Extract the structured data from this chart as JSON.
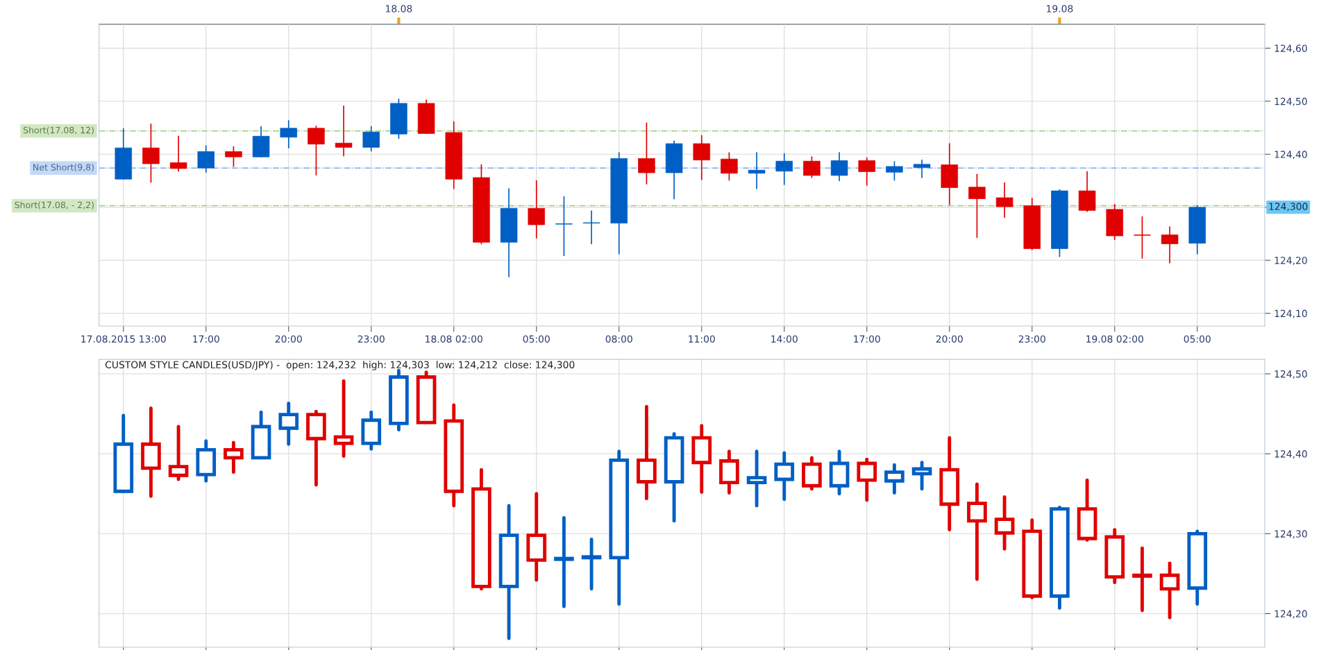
{
  "chart_data": [
    {
      "type": "candlestick",
      "x": [
        "2015-08-17T14:00",
        "2015-08-17T15:00",
        "2015-08-17T16:00",
        "2015-08-17T17:00",
        "2015-08-17T18:00",
        "2015-08-17T19:00",
        "2015-08-17T20:00",
        "2015-08-17T21:00",
        "2015-08-17T22:00",
        "2015-08-17T23:00",
        "2015-08-18T00:00",
        "2015-08-18T01:00",
        "2015-08-18T02:00",
        "2015-08-18T03:00",
        "2015-08-18T04:00",
        "2015-08-18T05:00",
        "2015-08-18T06:00",
        "2015-08-18T07:00",
        "2015-08-18T08:00",
        "2015-08-18T09:00",
        "2015-08-18T10:00",
        "2015-08-18T11:00",
        "2015-08-18T12:00",
        "2015-08-18T13:00",
        "2015-08-18T14:00",
        "2015-08-18T15:00",
        "2015-08-18T16:00",
        "2015-08-18T17:00",
        "2015-08-18T18:00",
        "2015-08-18T19:00",
        "2015-08-18T20:00",
        "2015-08-18T21:00",
        "2015-08-18T22:00",
        "2015-08-18T23:00",
        "2015-08-19T00:00",
        "2015-08-19T01:00",
        "2015-08-19T02:00",
        "2015-08-19T03:00",
        "2015-08-19T04:00",
        "2015-08-19T05:00"
      ],
      "ohlc": [
        [
          124.353,
          124.448,
          124.353,
          124.412
        ],
        [
          124.412,
          124.457,
          124.347,
          124.382
        ],
        [
          124.384,
          124.434,
          124.368,
          124.373
        ],
        [
          124.374,
          124.416,
          124.366,
          124.405
        ],
        [
          124.405,
          124.414,
          124.377,
          124.395
        ],
        [
          124.395,
          124.452,
          124.395,
          124.434
        ],
        [
          124.432,
          124.463,
          124.412,
          124.449
        ],
        [
          124.449,
          124.453,
          124.361,
          124.419
        ],
        [
          124.421,
          124.491,
          124.397,
          124.413
        ],
        [
          124.413,
          124.452,
          124.406,
          124.442
        ],
        [
          124.438,
          124.504,
          124.43,
          124.496
        ],
        [
          124.496,
          124.502,
          124.439,
          124.439
        ],
        [
          124.441,
          124.461,
          124.335,
          124.353
        ],
        [
          124.356,
          124.38,
          124.231,
          124.234
        ],
        [
          124.234,
          124.335,
          124.169,
          124.298
        ],
        [
          124.298,
          124.35,
          124.242,
          124.267
        ],
        [
          124.268,
          124.32,
          124.209,
          124.269
        ],
        [
          124.27,
          124.293,
          124.231,
          124.271
        ],
        [
          124.27,
          124.403,
          124.212,
          124.392
        ],
        [
          124.392,
          124.459,
          124.344,
          124.365
        ],
        [
          124.365,
          124.425,
          124.316,
          124.42
        ],
        [
          124.42,
          124.435,
          124.352,
          124.389
        ],
        [
          124.391,
          124.403,
          124.351,
          124.364
        ],
        [
          124.364,
          124.403,
          124.335,
          124.37
        ],
        [
          124.368,
          124.401,
          124.343,
          124.387
        ],
        [
          124.387,
          124.395,
          124.356,
          124.36
        ],
        [
          124.36,
          124.403,
          124.35,
          124.388
        ],
        [
          124.388,
          124.393,
          124.342,
          124.367
        ],
        [
          124.366,
          124.386,
          124.351,
          124.377
        ],
        [
          124.375,
          124.389,
          124.356,
          124.381
        ],
        [
          124.38,
          124.42,
          124.305,
          124.337
        ],
        [
          124.338,
          124.362,
          124.243,
          124.316
        ],
        [
          124.318,
          124.346,
          124.281,
          124.301
        ],
        [
          124.303,
          124.317,
          124.22,
          124.222
        ],
        [
          124.222,
          124.333,
          124.207,
          124.331
        ],
        [
          124.331,
          124.367,
          124.292,
          124.294
        ],
        [
          124.296,
          124.305,
          124.239,
          124.246
        ],
        [
          124.248,
          124.282,
          124.204,
          124.247
        ],
        [
          124.248,
          124.263,
          124.195,
          124.231
        ],
        [
          124.232,
          124.303,
          124.212,
          124.3
        ]
      ],
      "colors": [
        "#005fc4",
        "#e00000",
        "#e00000",
        "#005fc4",
        "#e00000",
        "#005fc4",
        "#005fc4",
        "#e00000",
        "#e00000",
        "#005fc4",
        "#005fc4",
        "#e00000",
        "#e00000",
        "#e00000",
        "#005fc4",
        "#e00000",
        "#005fc4",
        "#005fc4",
        "#005fc4",
        "#e00000",
        "#005fc4",
        "#e00000",
        "#e00000",
        "#005fc4",
        "#005fc4",
        "#e00000",
        "#005fc4",
        "#e00000",
        "#005fc4",
        "#005fc4",
        "#e00000",
        "#e00000",
        "#e00000",
        "#e00000",
        "#005fc4",
        "#e00000",
        "#e00000",
        "#e00000",
        "#e00000",
        "#005fc4"
      ],
      "xlim": [
        "2015-08-17T13:07",
        "2015-08-19T07:27"
      ],
      "x2lim": [
        "2015-08-17T13:07",
        "2015-08-19T07:27"
      ],
      "xticks": [
        {
          "value": "2015-08-17T14:00",
          "label": "17.08.2015 13:00"
        },
        {
          "value": "2015-08-17T17:00",
          "label": "17:00"
        },
        {
          "value": "2015-08-17T20:00",
          "label": "20:00"
        },
        {
          "value": "2015-08-17T23:00",
          "label": "23:00"
        },
        {
          "value": "2015-08-18T02:00",
          "label": "18.08 02:00"
        },
        {
          "value": "2015-08-18T05:00",
          "label": "05:00"
        },
        {
          "value": "2015-08-18T08:00",
          "label": "08:00"
        },
        {
          "value": "2015-08-18T11:00",
          "label": "11:00"
        },
        {
          "value": "2015-08-18T14:00",
          "label": "14:00"
        },
        {
          "value": "2015-08-18T17:00",
          "label": "17:00"
        },
        {
          "value": "2015-08-18T20:00",
          "label": "20:00"
        },
        {
          "value": "2015-08-18T23:00",
          "label": "23:00"
        },
        {
          "value": "2015-08-19T02:00",
          "label": "19.08 02:00"
        },
        {
          "value": "2015-08-19T05:00",
          "label": "05:00"
        }
      ],
      "x2ticks": [
        {
          "value": "2015-08-18T00:00",
          "label": "18.08"
        },
        {
          "value": "2015-08-19T00:00",
          "label": "19.08"
        }
      ],
      "ylim": [
        124.076,
        124.645
      ],
      "yticks": [
        {
          "value": 124.1,
          "label": "124,10"
        },
        {
          "value": 124.2,
          "label": "124,20"
        },
        {
          "value": 124.3,
          "label": null
        },
        {
          "value": 124.4,
          "label": "124,40"
        },
        {
          "value": 124.5,
          "label": "124,50"
        },
        {
          "value": 124.6,
          "label": "124,60"
        }
      ],
      "ref_lines": [
        {
          "axis": "y",
          "value": 124.444,
          "label": "Short(17.08, 12)",
          "color": "#9ccc7a",
          "line_style": "dashdot"
        },
        {
          "axis": "y",
          "value": 124.374,
          "label": "Net Short(9,8)",
          "color": "#7aaaf0",
          "line_style": "dashdot"
        },
        {
          "axis": "y",
          "value": 124.303,
          "label": "Short(17.08, - 2,2)",
          "color": "#9ccc7a",
          "line_style": "dashdot"
        }
      ],
      "annotations": [
        "124,300"
      ],
      "grid": true
    },
    {
      "type": "candlestick",
      "title": "CUSTOM STYLE CANDLES(USD/JPY) -  open: 124,232  high: 124,303  low: 124,212  close: 124,300",
      "x": [
        "2015-08-17T14:00",
        "2015-08-17T15:00",
        "2015-08-17T16:00",
        "2015-08-17T17:00",
        "2015-08-17T18:00",
        "2015-08-17T19:00",
        "2015-08-17T20:00",
        "2015-08-17T21:00",
        "2015-08-17T22:00",
        "2015-08-17T23:00",
        "2015-08-18T00:00",
        "2015-08-18T01:00",
        "2015-08-18T02:00",
        "2015-08-18T03:00",
        "2015-08-18T04:00",
        "2015-08-18T05:00",
        "2015-08-18T06:00",
        "2015-08-18T07:00",
        "2015-08-18T08:00",
        "2015-08-18T09:00",
        "2015-08-18T10:00",
        "2015-08-18T11:00",
        "2015-08-18T12:00",
        "2015-08-18T13:00",
        "2015-08-18T14:00",
        "2015-08-18T15:00",
        "2015-08-18T16:00",
        "2015-08-18T17:00",
        "2015-08-18T18:00",
        "2015-08-18T19:00",
        "2015-08-18T20:00",
        "2015-08-18T21:00",
        "2015-08-18T22:00",
        "2015-08-18T23:00",
        "2015-08-19T00:00",
        "2015-08-19T01:00",
        "2015-08-19T02:00",
        "2015-08-19T03:00",
        "2015-08-19T04:00",
        "2015-08-19T05:00"
      ],
      "ohlc": [
        [
          124.353,
          124.448,
          124.353,
          124.412
        ],
        [
          124.412,
          124.457,
          124.347,
          124.382
        ],
        [
          124.384,
          124.434,
          124.368,
          124.373
        ],
        [
          124.374,
          124.416,
          124.366,
          124.405
        ],
        [
          124.405,
          124.414,
          124.377,
          124.395
        ],
        [
          124.395,
          124.452,
          124.395,
          124.434
        ],
        [
          124.432,
          124.463,
          124.412,
          124.449
        ],
        [
          124.449,
          124.453,
          124.361,
          124.419
        ],
        [
          124.421,
          124.491,
          124.397,
          124.413
        ],
        [
          124.413,
          124.452,
          124.406,
          124.442
        ],
        [
          124.438,
          124.504,
          124.43,
          124.496
        ],
        [
          124.496,
          124.502,
          124.439,
          124.439
        ],
        [
          124.441,
          124.461,
          124.335,
          124.353
        ],
        [
          124.356,
          124.38,
          124.231,
          124.234
        ],
        [
          124.234,
          124.335,
          124.169,
          124.298
        ],
        [
          124.298,
          124.35,
          124.242,
          124.267
        ],
        [
          124.268,
          124.32,
          124.209,
          124.269
        ],
        [
          124.27,
          124.293,
          124.231,
          124.271
        ],
        [
          124.27,
          124.403,
          124.212,
          124.392
        ],
        [
          124.392,
          124.459,
          124.344,
          124.365
        ],
        [
          124.365,
          124.425,
          124.316,
          124.42
        ],
        [
          124.42,
          124.435,
          124.352,
          124.389
        ],
        [
          124.391,
          124.403,
          124.351,
          124.364
        ],
        [
          124.364,
          124.403,
          124.335,
          124.37
        ],
        [
          124.368,
          124.401,
          124.343,
          124.387
        ],
        [
          124.387,
          124.395,
          124.356,
          124.36
        ],
        [
          124.36,
          124.403,
          124.35,
          124.388
        ],
        [
          124.388,
          124.393,
          124.342,
          124.367
        ],
        [
          124.366,
          124.386,
          124.351,
          124.377
        ],
        [
          124.375,
          124.389,
          124.356,
          124.381
        ],
        [
          124.38,
          124.42,
          124.305,
          124.337
        ],
        [
          124.338,
          124.362,
          124.243,
          124.316
        ],
        [
          124.318,
          124.346,
          124.281,
          124.301
        ],
        [
          124.303,
          124.317,
          124.22,
          124.222
        ],
        [
          124.222,
          124.333,
          124.207,
          124.331
        ],
        [
          124.331,
          124.367,
          124.292,
          124.294
        ],
        [
          124.296,
          124.305,
          124.239,
          124.246
        ],
        [
          124.248,
          124.282,
          124.204,
          124.247
        ],
        [
          124.248,
          124.263,
          124.195,
          124.231
        ],
        [
          124.232,
          124.303,
          124.212,
          124.3
        ]
      ],
      "colors": [
        "#005fc4",
        "#e00000",
        "#e00000",
        "#005fc4",
        "#e00000",
        "#005fc4",
        "#005fc4",
        "#e00000",
        "#e00000",
        "#005fc4",
        "#005fc4",
        "#e00000",
        "#e00000",
        "#e00000",
        "#005fc4",
        "#e00000",
        "#005fc4",
        "#005fc4",
        "#005fc4",
        "#e00000",
        "#005fc4",
        "#e00000",
        "#e00000",
        "#005fc4",
        "#005fc4",
        "#e00000",
        "#005fc4",
        "#e00000",
        "#005fc4",
        "#005fc4",
        "#e00000",
        "#e00000",
        "#e00000",
        "#e00000",
        "#005fc4",
        "#e00000",
        "#e00000",
        "#e00000",
        "#e00000",
        "#005fc4"
      ],
      "xlim": [
        "2015-08-17T13:07",
        "2015-08-19T07:27"
      ],
      "xticks": [
        {
          "value": "2015-08-17T14:00",
          "label": null
        },
        {
          "value": "2015-08-17T17:00",
          "label": null
        },
        {
          "value": "2015-08-17T20:00",
          "label": null
        },
        {
          "value": "2015-08-17T23:00",
          "label": null
        },
        {
          "value": "2015-08-18T02:00",
          "label": null
        },
        {
          "value": "2015-08-18T05:00",
          "label": null
        },
        {
          "value": "2015-08-18T08:00",
          "label": null
        },
        {
          "value": "2015-08-18T11:00",
          "label": null
        },
        {
          "value": "2015-08-18T14:00",
          "label": null
        },
        {
          "value": "2015-08-18T17:00",
          "label": null
        },
        {
          "value": "2015-08-18T20:00",
          "label": null
        },
        {
          "value": "2015-08-18T23:00",
          "label": null
        },
        {
          "value": "2015-08-19T02:00",
          "label": null
        },
        {
          "value": "2015-08-19T05:00",
          "label": null
        }
      ],
      "ylim": [
        124.158,
        124.518
      ],
      "yticks": [
        {
          "value": 124.2,
          "label": "124,20"
        },
        {
          "value": 124.3,
          "label": "124,30"
        },
        {
          "value": 124.4,
          "label": "124,40"
        },
        {
          "value": 124.5,
          "label": "124,50"
        }
      ],
      "tick_labels": "y",
      "grid": true
    }
  ]
}
